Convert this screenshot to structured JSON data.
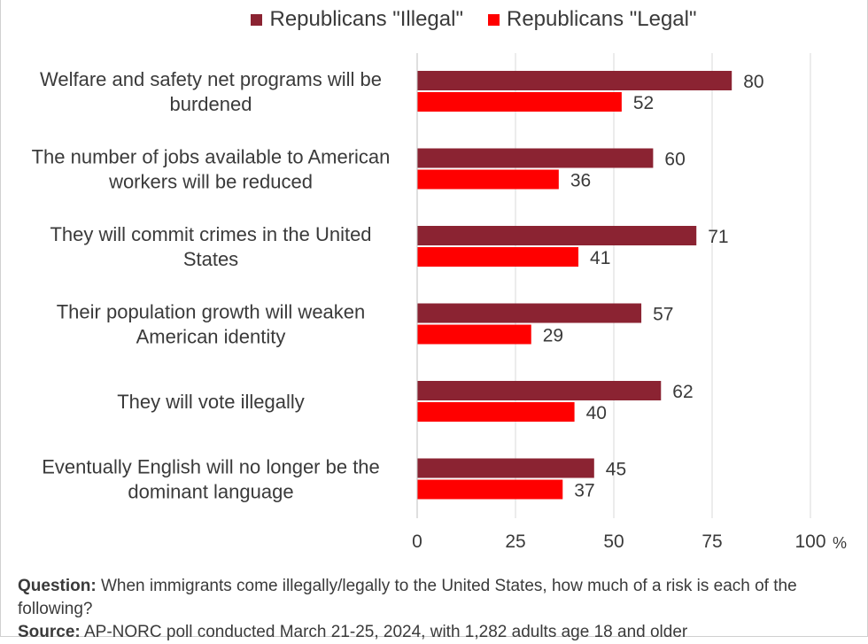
{
  "chart_data": {
    "type": "bar",
    "orientation": "horizontal",
    "categories": [
      [
        "Welfare and safety net programs will be",
        "burdened"
      ],
      [
        "The number of jobs available to American",
        "workers will be reduced"
      ],
      [
        "They will commit crimes in the United",
        "States"
      ],
      [
        "Their population growth will weaken",
        "American identity"
      ],
      [
        "They will vote illegally"
      ],
      [
        "Eventually English will no longer be the",
        "dominant language"
      ]
    ],
    "series": [
      {
        "name": "Republicans \"Illegal\"",
        "color": "#8b2332",
        "values": [
          80,
          60,
          71,
          57,
          62,
          45
        ]
      },
      {
        "name": "Republicans \"Legal\"",
        "color": "#ff0000",
        "values": [
          52,
          36,
          41,
          29,
          40,
          37
        ]
      }
    ],
    "xlim": [
      0,
      100
    ],
    "xticks": [
      0,
      25,
      50,
      75,
      100
    ],
    "unit": "%",
    "grid": true,
    "legend_position": "top"
  },
  "notes": {
    "question_label": "Question:",
    "question_text": " When immigrants come illegally/legally to the United States, how much of a risk is each of the following?",
    "source_label": "Source:",
    "source_text": " AP-NORC poll conducted March 21-25, 2024, with 1,282 adults age 18 and older"
  }
}
